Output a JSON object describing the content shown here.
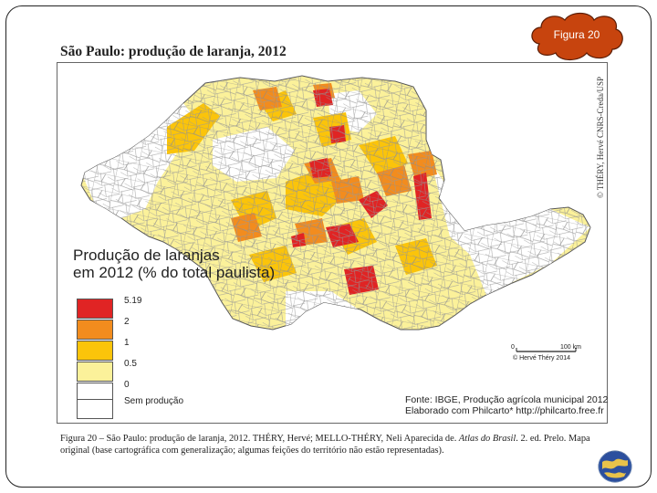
{
  "badge": {
    "label": "Figura 20",
    "color": "#c7440e"
  },
  "map": {
    "title": "São Paulo: produção de laranja, 2012",
    "credit": "© THÉRY, Hervé CNRS-Creda/USP",
    "legend": {
      "title_line1": "Produção de laranjas",
      "title_line2": "em 2012 (% do total paulista)",
      "items": [
        {
          "label": "5.19",
          "color": "#e02424"
        },
        {
          "label": "2",
          "color": "#f28c1e"
        },
        {
          "label": "1",
          "color": "#fbc40a"
        },
        {
          "label": "0.5",
          "color": "#fbf19a"
        },
        {
          "label": "0",
          "color": "#ffffff"
        },
        {
          "label": "Sem produção",
          "color": "#ffffff"
        }
      ]
    },
    "scale": {
      "zero": "0",
      "distance": "100 km",
      "author": "© Hervé Théry 2014"
    },
    "source_line1": "Fonte: IBGE, Produção agrícola municipal 2012",
    "source_line2": "Elaborado com Philcarto* http://philcarto.free.fr"
  },
  "caption": {
    "label": "Figura 20",
    "text_a": " – São Paulo: produção de laranja, 2012. THÉRY, Hervé; MELLO-THÉRY, Neli Aparecida de. ",
    "atlas": "Atlas do Brasil",
    "text_b": ". 2. ed. Prelo. Mapa original (base cartográfica com generalização; algumas feições do território não estão representadas)."
  },
  "logo": {
    "icon": "globe-logo-icon"
  }
}
